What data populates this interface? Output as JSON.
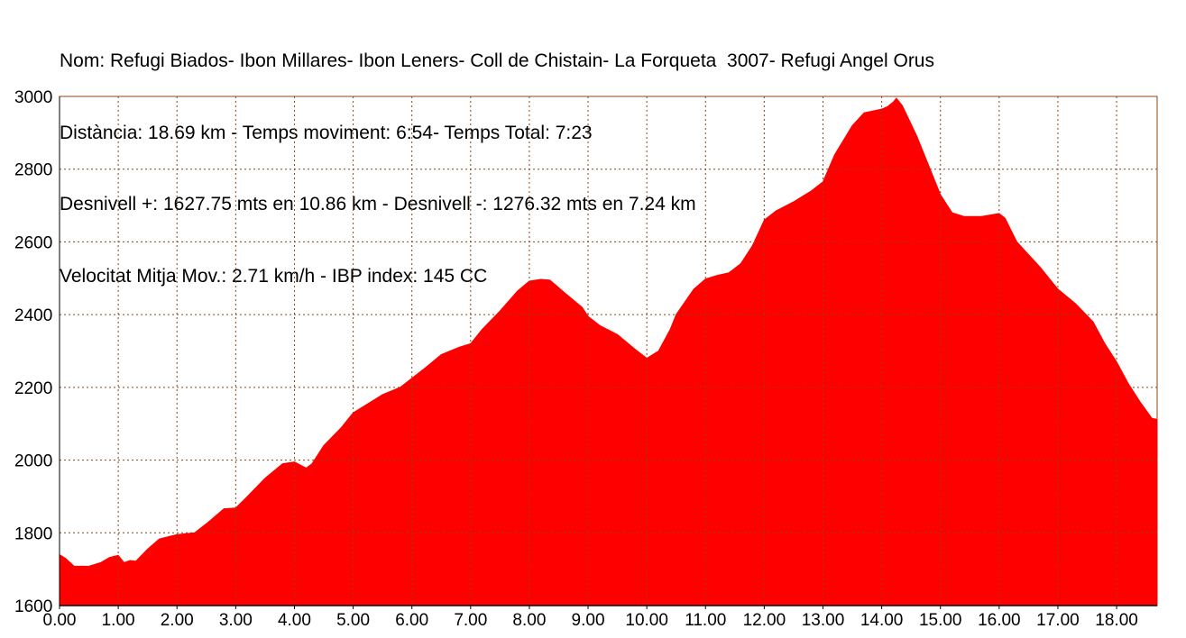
{
  "header": {
    "lines": [
      "Nom: Refugi Biados- Ibon Millares- Ibon Leners- Coll de Chistain- La Forqueta  3007- Refugi Angel Orus",
      "Distància: 18.69 km - Temps moviment: 6:54- Temps Total: 7:23",
      "Desnivell +: 1627.75 mts en 10.86 km - Desnivell -: 1276.32 mts en 7.24 km",
      "Velocitat Mitja Mov.: 2.71 km/h - IBP index: 145 CC"
    ]
  },
  "colors": {
    "fill": "#ff0000",
    "grid": "#8b4513",
    "axis": "#000000"
  },
  "chart_data": {
    "type": "area",
    "title": "",
    "xlabel": "",
    "ylabel": "",
    "xlim": [
      0,
      18.69
    ],
    "ylim": [
      1600,
      3000
    ],
    "grid": true,
    "x_ticks": [
      0,
      1,
      2,
      3,
      4,
      5,
      6,
      7,
      8,
      9,
      10,
      11,
      12,
      13,
      14,
      15,
      16,
      17,
      18
    ],
    "x_tick_labels": [
      "0.00",
      "1.00",
      "2.00",
      "3.00",
      "4.00",
      "5.00",
      "6.00",
      "7.00",
      "8.00",
      "9.00",
      "10.00",
      "11.00",
      "12.00",
      "13.00",
      "14.00",
      "15.00",
      "16.00",
      "17.00",
      "18.00"
    ],
    "y_ticks": [
      1600,
      1800,
      2000,
      2200,
      2400,
      2600,
      2800,
      3000
    ],
    "y_tick_labels": [
      "1600",
      "1800",
      "2000",
      "2200",
      "2400",
      "2600",
      "2800",
      "3000"
    ],
    "series": [
      {
        "x": [
          0,
          0.1,
          0.25,
          0.5,
          0.7,
          0.85,
          1.0,
          1.1,
          1.2,
          1.3,
          1.5,
          1.7,
          2.0,
          2.3,
          2.5,
          2.8,
          3.0,
          3.2,
          3.5,
          3.8,
          4.0,
          4.2,
          4.3,
          4.5,
          4.8,
          5.0,
          5.3,
          5.5,
          5.8,
          6.0,
          6.2,
          6.5,
          6.8,
          7.0,
          7.2,
          7.5,
          7.8,
          8.0,
          8.2,
          8.35,
          8.6,
          8.9,
          9.0,
          9.2,
          9.5,
          9.8,
          10.0,
          10.2,
          10.4,
          10.5,
          10.8,
          11.0,
          11.2,
          11.4,
          11.6,
          11.8,
          12.0,
          12.2,
          12.5,
          12.8,
          13.0,
          13.2,
          13.5,
          13.7,
          14.0,
          14.1,
          14.2,
          14.25,
          14.35,
          14.6,
          14.8,
          15.0,
          15.2,
          15.4,
          15.7,
          16.0,
          16.1,
          16.3,
          16.5,
          16.7,
          17.0,
          17.3,
          17.6,
          17.8,
          18.0,
          18.2,
          18.4,
          18.6,
          18.69
        ],
        "y": [
          1740,
          1730,
          1708,
          1708,
          1718,
          1732,
          1738,
          1718,
          1724,
          1722,
          1755,
          1783,
          1795,
          1800,
          1825,
          1866,
          1868,
          1900,
          1950,
          1990,
          1995,
          1978,
          1990,
          2040,
          2090,
          2130,
          2160,
          2180,
          2200,
          2225,
          2250,
          2290,
          2310,
          2320,
          2360,
          2410,
          2465,
          2492,
          2497,
          2495,
          2460,
          2420,
          2395,
          2370,
          2345,
          2305,
          2280,
          2300,
          2360,
          2400,
          2470,
          2498,
          2508,
          2515,
          2540,
          2590,
          2660,
          2685,
          2710,
          2740,
          2765,
          2840,
          2920,
          2955,
          2965,
          2972,
          2985,
          2995,
          2975,
          2890,
          2810,
          2730,
          2680,
          2670,
          2670,
          2678,
          2665,
          2600,
          2565,
          2530,
          2470,
          2430,
          2380,
          2320,
          2270,
          2210,
          2160,
          2115,
          2112
        ]
      }
    ]
  }
}
